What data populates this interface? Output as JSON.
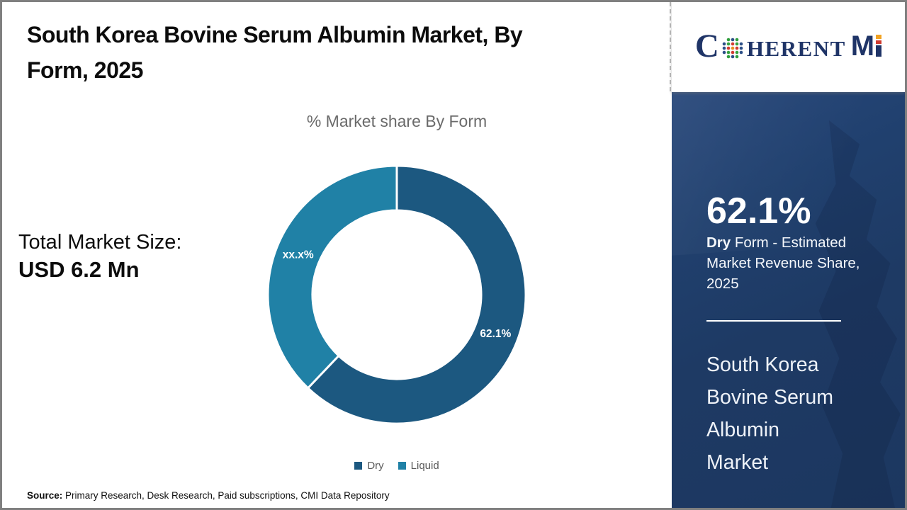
{
  "header": {
    "title": "South Korea Bovine Serum Albumin Market, By Form, 2025",
    "title_lines": [
      "South Korea Bovine Serum Albumin Market, By",
      "Form, 2025"
    ]
  },
  "chart_data": {
    "type": "pie",
    "subtype": "donut",
    "title": "% Market share By Form",
    "categories": [
      "Dry",
      "Liquid"
    ],
    "values": [
      62.1,
      37.9
    ],
    "display_labels": [
      "62.1%",
      "xx.x%"
    ],
    "colors": [
      "#1c5880",
      "#2081a6"
    ],
    "start_angle_deg": 0,
    "direction": "clockwise",
    "legend_position": "bottom",
    "label_text_color": "#ffffff"
  },
  "left_panel": {
    "total_market_size_label": "Total Market Size:",
    "total_market_size_value": "USD 6.2 Mn"
  },
  "source": {
    "label": "Source:",
    "text": " Primary Research, Desk Research, Paid subscriptions, CMI Data Repository"
  },
  "logo": {
    "part_c": "C",
    "part_herent": "HERENT",
    "part_m": "M",
    "brand_color": "#1f3467",
    "accent_orange": "#f2a324",
    "accent_red": "#d03a2e"
  },
  "sidebar": {
    "bg_color": "#1e3a64",
    "stat_value": "62.1%",
    "desc_line1_bold": "Dry",
    "desc_line1_rest": " Form - Estimated",
    "desc_line2": "Market Revenue Share,",
    "desc_line3": "2025",
    "market_name": "South Korea Bovine Serum Albumin Market",
    "market_name_lines": [
      "South Korea",
      "Bovine Serum",
      "Albumin",
      "Market"
    ]
  }
}
